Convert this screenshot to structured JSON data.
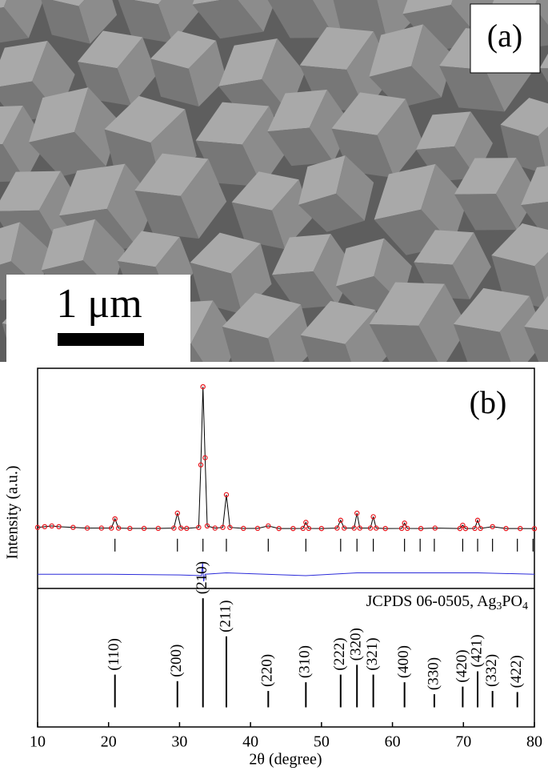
{
  "panel_a": {
    "label": "(a)",
    "scale_bar": "1 μm"
  },
  "chart_data": [
    {
      "type": "line",
      "panel_label": "(b)",
      "ylabel": "Intensity (a.u.)",
      "xlim": [
        10,
        80
      ],
      "ylim": [
        -42,
        113
      ],
      "x": [
        10,
        11,
        12,
        13,
        15,
        17,
        19,
        20.4,
        20.9,
        21.4,
        23,
        25,
        27,
        29.2,
        29.7,
        30.2,
        31,
        32.7,
        33.0,
        33.3,
        33.6,
        33.9,
        35,
        36.1,
        36.6,
        37.1,
        39,
        41,
        42.5,
        44,
        46,
        47.4,
        47.8,
        48.2,
        50,
        52.2,
        52.7,
        53.2,
        54.6,
        55.0,
        55.4,
        56.9,
        57.3,
        57.7,
        59,
        61.3,
        61.7,
        62.1,
        64,
        66,
        69.5,
        69.9,
        70.3,
        71.6,
        72.0,
        72.4,
        74.1,
        76,
        78,
        80
      ],
      "series": [
        {
          "color": "#e8141b",
          "marker": "circle",
          "values": [
            1,
            1.5,
            2,
            1.5,
            1,
            0.5,
            0.5,
            0.5,
            7,
            0.5,
            0.3,
            0.3,
            0.3,
            0.5,
            11,
            0.5,
            0.3,
            1,
            45,
            100,
            50,
            2,
            0.5,
            1,
            24,
            1,
            0.3,
            0.3,
            2,
            0.2,
            0.2,
            0.3,
            4.5,
            0.3,
            0.2,
            0.5,
            6,
            0.5,
            0.5,
            11,
            0.5,
            0.5,
            8.5,
            0.5,
            0.2,
            0.3,
            4,
            0.3,
            0.2,
            0.5,
            0.2,
            2.5,
            0.2,
            0.3,
            6,
            0.3,
            1.5,
            0.2,
            0.2,
            0.1
          ]
        },
        {
          "color": "#000000",
          "values": [
            1,
            1.5,
            2,
            1.5,
            1,
            0.5,
            0.5,
            0.5,
            7,
            0.5,
            0.3,
            0.3,
            0.3,
            0.5,
            11,
            0.5,
            0.3,
            1,
            45,
            100,
            50,
            2,
            0.5,
            1,
            24,
            1,
            0.3,
            0.3,
            2,
            0.2,
            0.2,
            0.3,
            4.5,
            0.3,
            0.2,
            0.5,
            6,
            0.5,
            0.5,
            11,
            0.5,
            0.5,
            8.5,
            0.5,
            0.2,
            0.3,
            4,
            0.3,
            0.2,
            0.5,
            0.2,
            2.5,
            0.2,
            0.3,
            6,
            0.3,
            1.5,
            0.2,
            0.2,
            0.1
          ]
        },
        {
          "color": "#2b2bd9",
          "x": [
            10,
            20,
            30,
            33.1,
            33.25,
            33.4,
            33.6,
            36.6,
            47.8,
            55,
            72,
            80
          ],
          "values": [
            -32,
            -32,
            -32.5,
            -33,
            -24,
            -37,
            -32,
            -31,
            -33,
            -31,
            -31,
            -32
          ]
        }
      ],
      "bragg_positions": [
        20.9,
        29.7,
        33.3,
        36.6,
        42.5,
        47.8,
        52.7,
        55.0,
        57.3,
        61.7,
        63.9,
        65.9,
        69.9,
        72.0,
        74.1,
        77.6,
        79.8
      ],
      "bragg_color": "#000000"
    },
    {
      "type": "stem",
      "xlabel": "2θ (degree)",
      "reference_parts": [
        "JCPDS 06-0505, Ag",
        "3",
        "PO",
        "4"
      ],
      "xlim": [
        10,
        80
      ],
      "xticks": [
        10,
        20,
        30,
        40,
        50,
        60,
        70,
        80
      ],
      "ylim": [
        -18,
        109
      ],
      "x": [
        20.9,
        29.7,
        33.3,
        36.6,
        42.5,
        47.8,
        52.7,
        55.0,
        57.3,
        61.7,
        65.9,
        69.9,
        72.0,
        74.1,
        77.6
      ],
      "values": [
        30,
        24,
        100,
        65,
        15,
        23,
        30,
        39,
        30,
        23,
        12,
        19,
        33,
        15,
        14
      ],
      "labels": [
        "(110)",
        "(200)",
        "(210)",
        "(211)",
        "(220)",
        "(310)",
        "(222)",
        "(320)",
        "(321)",
        "(400)",
        "(330)",
        "(420)",
        "(421)",
        "(332)",
        "(422)"
      ],
      "color": "#000000"
    }
  ]
}
